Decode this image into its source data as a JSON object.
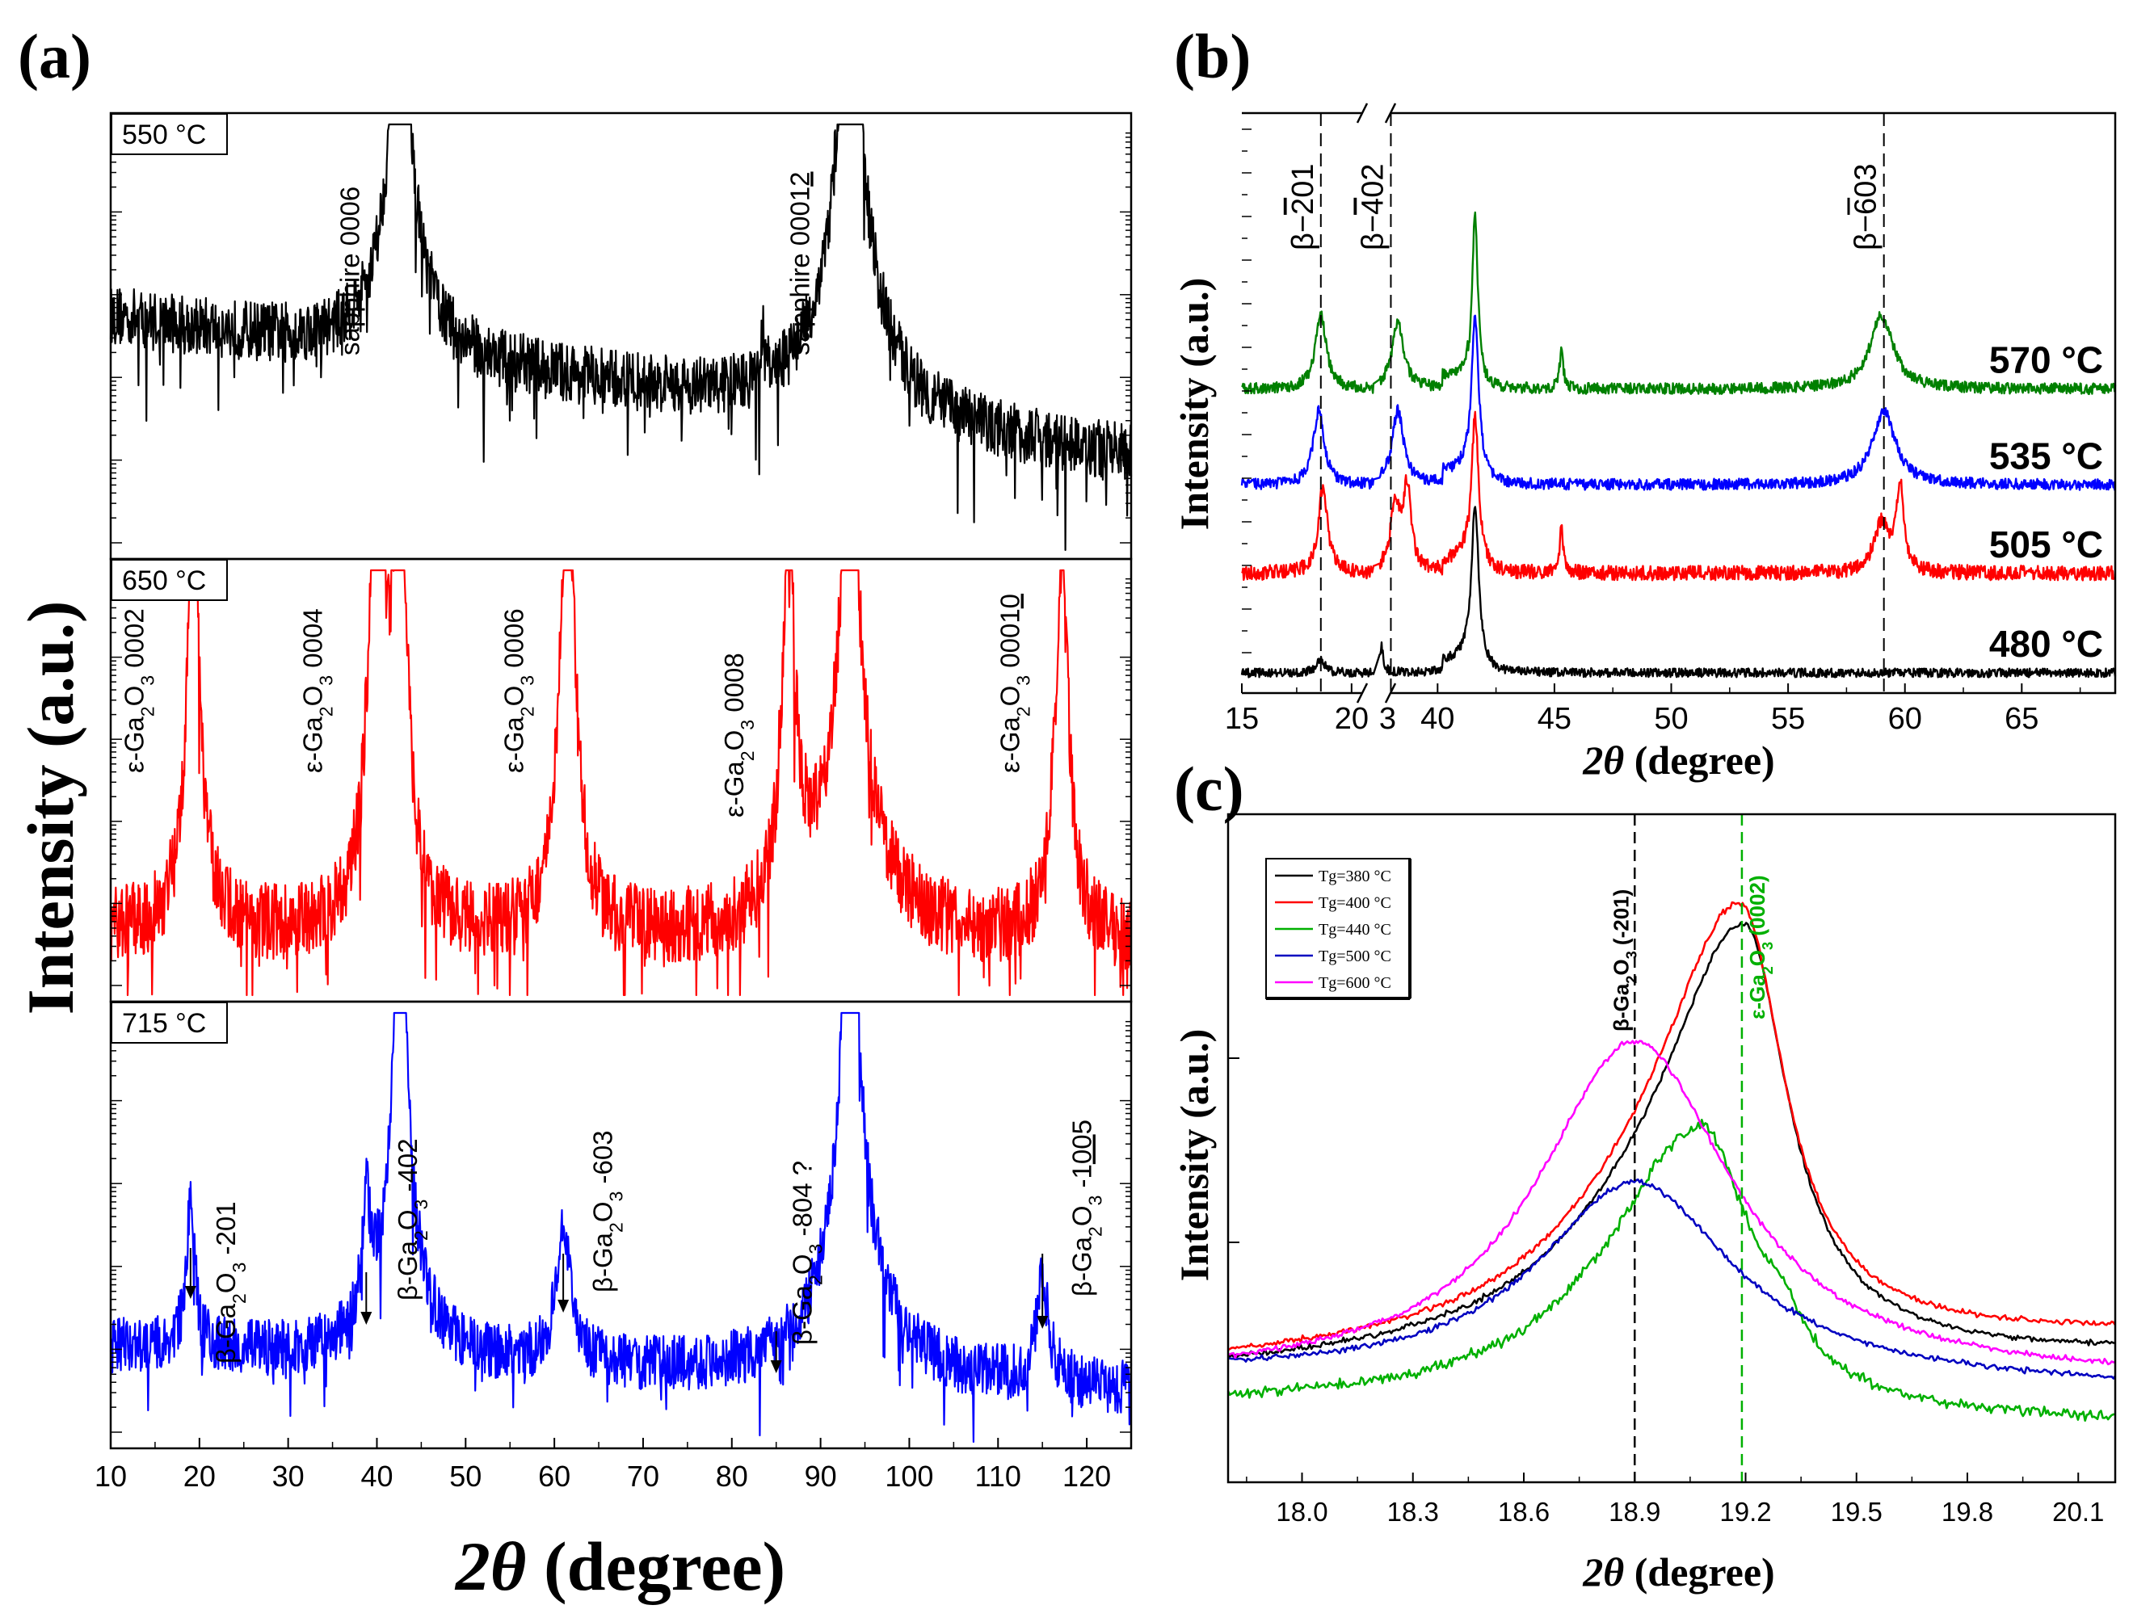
{
  "chart_data": [
    {
      "panel": "(a)",
      "type": "line",
      "xlabel_theta": "2θ",
      "xlabel_unit": "(degree)",
      "ylabel": "Intensity (a.u.)",
      "xlim": [
        10,
        125
      ],
      "xticks": [
        10,
        20,
        30,
        40,
        50,
        60,
        70,
        80,
        90,
        100,
        110,
        120
      ],
      "y_scale": "log",
      "subplots": [
        {
          "label": "550 °C",
          "color": "#000000",
          "baseline_range": [
            0.55,
            0.22
          ],
          "noise": 0.14,
          "peaks": [
            {
              "x": 42.6,
              "height": 1.0,
              "width": 0.7,
              "tail": 3.0
            },
            {
              "x": 93.3,
              "height": 1.0,
              "width": 1.1,
              "tail": 4.5
            },
            {
              "x": 83.5,
              "height": 0.1,
              "width": 0.25,
              "tail": 0
            }
          ],
          "annotations": [
            {
              "text": "sapphire 0006",
              "x": 38.0
            },
            {
              "text": "sapphire 0001",
              "underline": "2",
              "x": 88.7
            }
          ]
        },
        {
          "label": "650 °C",
          "color": "#ff0000",
          "baseline_range": [
            0.15,
            0.12
          ],
          "noise": 0.18,
          "peaks": [
            {
              "x": 19.3,
              "height": 0.78,
              "width": 0.7,
              "tail": 1.5
            },
            {
              "x": 40.0,
              "height": 0.92,
              "width": 0.8,
              "tail": 1.5
            },
            {
              "x": 42.6,
              "height": 0.92,
              "width": 0.6,
              "tail": 1.5
            },
            {
              "x": 61.5,
              "height": 0.82,
              "width": 0.9,
              "tail": 1.5
            },
            {
              "x": 86.4,
              "height": 0.68,
              "width": 0.7,
              "tail": 1.5
            },
            {
              "x": 93.3,
              "height": 1.0,
              "width": 1.0,
              "tail": 4.0
            },
            {
              "x": 117.2,
              "height": 0.67,
              "width": 0.8,
              "tail": 1.5
            }
          ],
          "annotations": [
            {
              "prefix": "ε-Ga",
              "sub1": "2",
              "mid": "O",
              "sub2": "3",
              "suffix": " 0002",
              "x": 13.7
            },
            {
              "prefix": "ε-Ga",
              "sub1": "2",
              "mid": "O",
              "sub2": "3",
              "suffix": " 0004",
              "x": 33.8
            },
            {
              "prefix": "ε-Ga",
              "sub1": "2",
              "mid": "O",
              "sub2": "3",
              "suffix": " 0006",
              "x": 56.5
            },
            {
              "prefix": "ε-Ga",
              "sub1": "2",
              "mid": "O",
              "sub2": "3",
              "suffix": " 0008",
              "x": 81.3
            },
            {
              "prefix": "ε-Ga",
              "sub1": "2",
              "mid": "O",
              "sub2": "3",
              "suffix": " 0001",
              "underline": "0",
              "x": 112.4
            }
          ]
        },
        {
          "label": "715 °C",
          "color": "#0000ff",
          "baseline_range": [
            0.22,
            0.12
          ],
          "noise": 0.13,
          "peaks": [
            {
              "x": 19.0,
              "height": 0.26,
              "width": 0.5,
              "tail": 0.8
            },
            {
              "x": 38.8,
              "height": 0.2,
              "width": 0.5,
              "tail": 0.8
            },
            {
              "x": 42.6,
              "height": 0.97,
              "width": 0.7,
              "tail": 2.5
            },
            {
              "x": 61.0,
              "height": 0.25,
              "width": 0.8,
              "tail": 1.2
            },
            {
              "x": 93.4,
              "height": 1.0,
              "width": 1.0,
              "tail": 4.0
            },
            {
              "x": 115.0,
              "height": 0.18,
              "width": 0.7,
              "tail": 1.2
            }
          ],
          "annotations": [
            {
              "prefix": "β-Ga",
              "sub1": "2",
              "mid": "O",
              "sub2": "3",
              "suffix": " -201",
              "x": 24.0,
              "arrow_x": 19.0
            },
            {
              "prefix": "β-Ga",
              "sub1": "2",
              "mid": "O",
              "sub2": "3",
              "suffix": " -402",
              "x": 44.5,
              "arrow_x": 38.8
            },
            {
              "prefix": "β-Ga",
              "sub1": "2",
              "mid": "O",
              "sub2": "3",
              "suffix": " -603",
              "x": 66.5,
              "arrow_x": 61.0
            },
            {
              "prefix": "β-Ga",
              "sub1": "2",
              "mid": "O",
              "sub2": "3",
              "suffix": " -804 ?",
              "x": 89.0,
              "arrow_x": 85.0
            },
            {
              "prefix": "β-Ga",
              "sub1": "2",
              "mid": "O",
              "sub2": "3",
              "suffix": " -1",
              "underline": "00",
              "suffix2": "5",
              "x": 120.5,
              "arrow_x": 115.0
            }
          ]
        }
      ]
    },
    {
      "panel": "(b)",
      "type": "line",
      "xlabel_theta": "2θ",
      "xlabel_unit": "(degree)",
      "ylabel": "Intensity (a.u.)",
      "x_break": {
        "left": [
          15,
          21
        ],
        "right": [
          37.5,
          69
        ]
      },
      "xticks": [
        15,
        20,
        40,
        45,
        50,
        55,
        60,
        65
      ],
      "xtick_labels": [
        "15",
        "20",
        "40",
        "45",
        "50",
        "55",
        "60",
        "65"
      ],
      "xtick_special": {
        "value": 38,
        "label": "3"
      },
      "series": [
        {
          "name": "480 °C",
          "color": "#000000",
          "offset": 0.0,
          "noise": 0.012,
          "peaks": [
            {
              "x": 41.6,
              "height": 0.45,
              "width": 0.2
            },
            {
              "x": 18.6,
              "height": 0.04,
              "width": 0.2
            },
            {
              "x": 37.6,
              "height": 0.07,
              "width": 0.1
            }
          ]
        },
        {
          "name": "505 °C",
          "color": "#ff0000",
          "offset": 0.27,
          "noise": 0.02,
          "peaks": [
            {
              "x": 18.7,
              "height": 0.24,
              "width": 0.25
            },
            {
              "x": 38.2,
              "height": 0.18,
              "width": 0.25
            },
            {
              "x": 38.7,
              "height": 0.22,
              "width": 0.2
            },
            {
              "x": 41.6,
              "height": 0.42,
              "width": 0.2
            },
            {
              "x": 45.3,
              "height": 0.12,
              "width": 0.1
            },
            {
              "x": 59.0,
              "height": 0.13,
              "width": 0.4
            },
            {
              "x": 59.8,
              "height": 0.22,
              "width": 0.2
            }
          ]
        },
        {
          "name": "535 °C",
          "color": "#0000ff",
          "offset": 0.51,
          "noise": 0.015,
          "peaks": [
            {
              "x": 18.5,
              "height": 0.2,
              "width": 0.3
            },
            {
              "x": 38.3,
              "height": 0.2,
              "width": 0.3
            },
            {
              "x": 41.6,
              "height": 0.45,
              "width": 0.2
            },
            {
              "x": 59.1,
              "height": 0.2,
              "width": 0.6
            }
          ]
        },
        {
          "name": "570 °C",
          "color": "#008000",
          "offset": 0.77,
          "noise": 0.015,
          "peaks": [
            {
              "x": 18.6,
              "height": 0.2,
              "width": 0.3
            },
            {
              "x": 38.3,
              "height": 0.18,
              "width": 0.3
            },
            {
              "x": 41.6,
              "height": 0.47,
              "width": 0.15
            },
            {
              "x": 45.3,
              "height": 0.1,
              "width": 0.1
            },
            {
              "x": 59.0,
              "height": 0.2,
              "width": 0.6
            }
          ]
        }
      ],
      "dashed_lines": [
        {
          "x": 18.6,
          "label_beta": "β−",
          "label_bar": "2",
          "label_rest": "01"
        },
        {
          "x": 38.0,
          "label_beta": "β−",
          "label_bar": "4",
          "label_rest": "02"
        },
        {
          "x": 59.1,
          "label_beta": "β−",
          "label_bar": "6",
          "label_rest": "03"
        }
      ]
    },
    {
      "panel": "(c)",
      "type": "line",
      "xlabel_theta": "2θ",
      "xlabel_unit": "(degree)",
      "ylabel": "Intensity (a.u.)",
      "xlim": [
        17.8,
        20.2
      ],
      "xticks": [
        18.0,
        18.3,
        18.6,
        18.9,
        19.2,
        19.5,
        19.8,
        20.1
      ],
      "xtick_labels": [
        "18.0",
        "18.3",
        "18.6",
        "18.9",
        "19.2",
        "19.5",
        "19.8",
        "20.1"
      ],
      "series": [
        {
          "name": "Tg=380 °C",
          "color": "#000000",
          "center": 19.2,
          "height": 0.78,
          "base": 0.16,
          "right_base": 0.19
        },
        {
          "name": "Tg=400 °C",
          "color": "#ff0000",
          "center": 19.19,
          "height": 0.81,
          "base": 0.17,
          "right_base": 0.22
        },
        {
          "name": "Tg=440 °C",
          "color": "#00b000",
          "center": 19.08,
          "height": 0.53,
          "base": 0.11,
          "right_base": 0.09
        },
        {
          "name": "Tg=500 °C",
          "color": "#0000c0",
          "center": 18.9,
          "height": 0.45,
          "base": 0.16,
          "right_base": 0.14
        },
        {
          "name": "Tg=600 °C",
          "color": "#ff00ff",
          "center": 18.9,
          "height": 0.66,
          "base": 0.15,
          "right_base": 0.15
        }
      ],
      "vlines": [
        {
          "x": 18.9,
          "color": "#000000",
          "label_prefix": "β-Ga",
          "label_sub1": "2",
          "label_mid": "O",
          "label_sub2": "3",
          "label_suffix": " (-201)"
        },
        {
          "x": 19.19,
          "color": "#00b000",
          "label_prefix": "ε-Ga",
          "label_sub1": "2",
          "label_mid": "O",
          "label_sub2": "3",
          "label_suffix": " (0002)"
        }
      ]
    }
  ]
}
